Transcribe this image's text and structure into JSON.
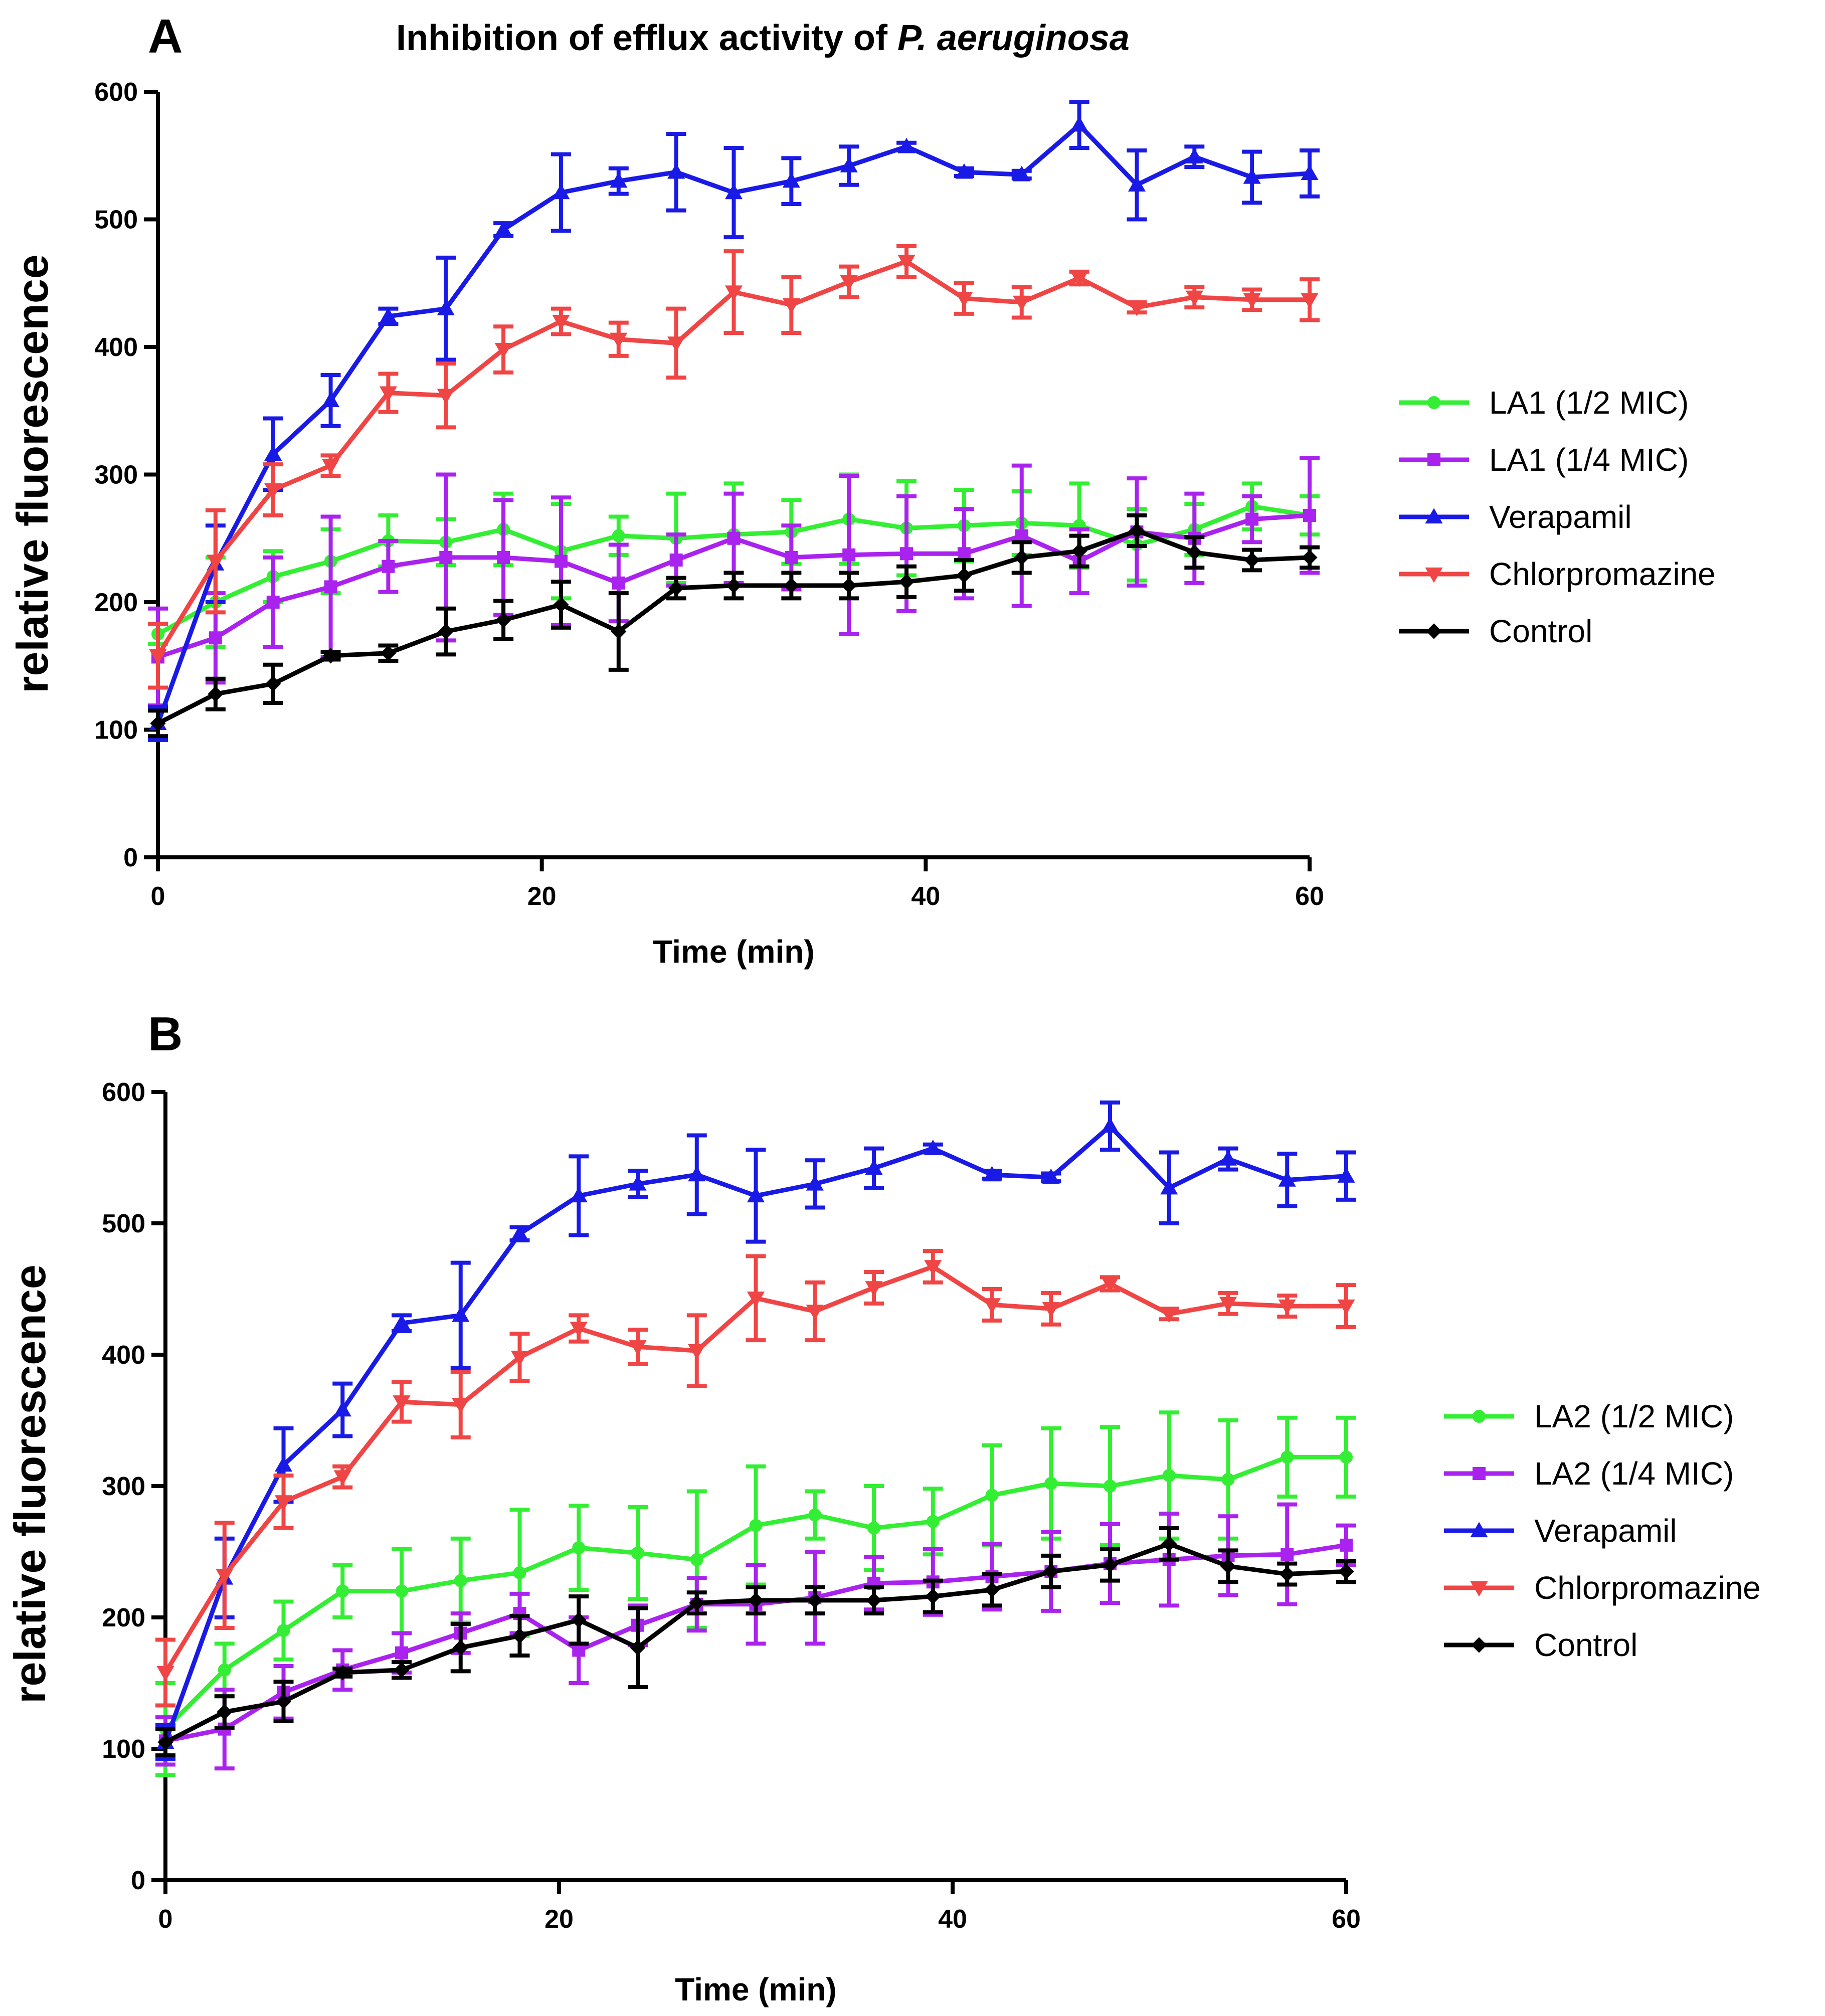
{
  "figure": {
    "title_prefix": "Inhibition of efflux activity of ",
    "title_italic": "P. aeruginosa"
  },
  "series_colors": {
    "half_mic": "#33EE33",
    "quarter_mic": "#AA22EE",
    "verapamil": "#1A1AE6",
    "chlorpromazine": "#F04545",
    "control": "#000000"
  },
  "chart_data": [
    {
      "panel": "A",
      "type": "line",
      "xlabel": "Time (min)",
      "ylabel": "relative fluorescence",
      "xlim": [
        0,
        60
      ],
      "ylim": [
        0,
        600
      ],
      "xticks": [
        0,
        20,
        40,
        60
      ],
      "yticks": [
        0,
        100,
        200,
        300,
        400,
        500,
        600
      ],
      "legend_position": "right",
      "x": [
        0,
        3,
        6,
        9,
        12,
        15,
        18,
        21,
        24,
        27,
        30,
        33,
        36,
        39,
        42,
        45,
        48,
        51,
        54,
        57,
        60
      ],
      "series": [
        {
          "name": "LA1 (1/2 MIC)",
          "color_key": "half_mic",
          "marker": "circle",
          "values": [
            175,
            200,
            220,
            232,
            248,
            247,
            257,
            240,
            252,
            250,
            253,
            255,
            265,
            258,
            260,
            262,
            260,
            245,
            257,
            275,
            268
          ],
          "errors": [
            8,
            35,
            20,
            25,
            20,
            18,
            28,
            37,
            15,
            35,
            40,
            25,
            35,
            37,
            28,
            25,
            33,
            28,
            20,
            18,
            15
          ]
        },
        {
          "name": "LA1 (1/4 MIC)",
          "color_key": "quarter_mic",
          "marker": "square",
          "values": [
            157,
            172,
            200,
            212,
            228,
            235,
            235,
            232,
            215,
            233,
            250,
            235,
            237,
            238,
            238,
            252,
            232,
            255,
            250,
            265,
            268
          ],
          "errors": [
            38,
            35,
            35,
            55,
            20,
            65,
            45,
            50,
            30,
            20,
            35,
            25,
            62,
            45,
            35,
            55,
            25,
            42,
            35,
            18,
            45
          ]
        },
        {
          "name": "Verapamil",
          "color_key": "verapamil",
          "marker": "triangle-up",
          "values": [
            105,
            230,
            316,
            358,
            424,
            430,
            492,
            521,
            530,
            537,
            521,
            530,
            542,
            557,
            537,
            535,
            574,
            527,
            549,
            533,
            536
          ],
          "errors": [
            13,
            30,
            28,
            20,
            6,
            40,
            5,
            30,
            10,
            30,
            35,
            18,
            15,
            3,
            3,
            3,
            18,
            27,
            8,
            20,
            18
          ]
        },
        {
          "name": "Chlorpromazine",
          "color_key": "chlorpromazine",
          "marker": "triangle-down",
          "values": [
            158,
            232,
            288,
            307,
            364,
            362,
            398,
            420,
            406,
            403,
            443,
            433,
            451,
            467,
            438,
            435,
            454,
            431,
            439,
            437,
            437
          ],
          "errors": [
            25,
            40,
            20,
            8,
            15,
            25,
            18,
            10,
            13,
            27,
            32,
            22,
            12,
            12,
            12,
            12,
            5,
            4,
            8,
            8,
            16
          ]
        },
        {
          "name": "Control",
          "color_key": "control",
          "marker": "diamond",
          "values": [
            105,
            128,
            136,
            158,
            160,
            177,
            186,
            198,
            177,
            211,
            213,
            213,
            213,
            216,
            221,
            235,
            240,
            256,
            239,
            233,
            235
          ],
          "errors": [
            10,
            12,
            15,
            3,
            6,
            18,
            15,
            18,
            30,
            8,
            10,
            10,
            10,
            12,
            12,
            12,
            12,
            12,
            12,
            8,
            8
          ]
        }
      ]
    },
    {
      "panel": "B",
      "type": "line",
      "xlabel": "Time (min)",
      "ylabel": "relative fluorescence",
      "xlim": [
        0,
        60
      ],
      "ylim": [
        0,
        600
      ],
      "xticks": [
        0,
        20,
        40,
        60
      ],
      "yticks": [
        0,
        100,
        200,
        300,
        400,
        500,
        600
      ],
      "legend_position": "right",
      "x": [
        0,
        3,
        6,
        9,
        12,
        15,
        18,
        21,
        24,
        27,
        30,
        33,
        36,
        39,
        42,
        45,
        48,
        51,
        54,
        57,
        60
      ],
      "series": [
        {
          "name": "LA2 (1/2 MIC)",
          "color_key": "half_mic",
          "marker": "circle",
          "values": [
            115,
            160,
            190,
            220,
            220,
            228,
            234,
            253,
            249,
            244,
            270,
            278,
            268,
            273,
            293,
            302,
            300,
            308,
            305,
            322,
            322
          ],
          "errors": [
            35,
            20,
            22,
            20,
            32,
            32,
            48,
            32,
            35,
            52,
            45,
            18,
            32,
            25,
            38,
            42,
            45,
            48,
            45,
            30,
            30
          ]
        },
        {
          "name": "LA2 (1/4 MIC)",
          "color_key": "quarter_mic",
          "marker": "square",
          "values": [
            106,
            115,
            143,
            160,
            173,
            188,
            203,
            175,
            194,
            210,
            210,
            215,
            226,
            227,
            231,
            235,
            241,
            244,
            247,
            248,
            255
          ],
          "errors": [
            18,
            30,
            20,
            15,
            15,
            15,
            15,
            25,
            15,
            20,
            30,
            35,
            20,
            25,
            25,
            30,
            30,
            35,
            30,
            38,
            15
          ]
        },
        {
          "name": "Verapamil",
          "color_key": "verapamil",
          "marker": "triangle-up",
          "values": [
            105,
            230,
            316,
            358,
            424,
            430,
            492,
            521,
            530,
            537,
            521,
            530,
            542,
            557,
            537,
            535,
            574,
            527,
            549,
            533,
            536
          ],
          "errors": [
            13,
            30,
            28,
            20,
            6,
            40,
            5,
            30,
            10,
            30,
            35,
            18,
            15,
            3,
            3,
            3,
            18,
            27,
            8,
            20,
            18
          ]
        },
        {
          "name": "Chlorpromazine",
          "color_key": "chlorpromazine",
          "marker": "triangle-down",
          "values": [
            158,
            232,
            288,
            307,
            364,
            362,
            398,
            420,
            406,
            403,
            443,
            433,
            451,
            467,
            438,
            435,
            454,
            431,
            439,
            437,
            437
          ],
          "errors": [
            25,
            40,
            20,
            8,
            15,
            25,
            18,
            10,
            13,
            27,
            32,
            22,
            12,
            12,
            12,
            12,
            5,
            4,
            8,
            8,
            16
          ]
        },
        {
          "name": "Control",
          "color_key": "control",
          "marker": "diamond",
          "values": [
            105,
            128,
            136,
            158,
            160,
            177,
            186,
            198,
            177,
            211,
            213,
            213,
            213,
            216,
            221,
            235,
            240,
            256,
            239,
            233,
            235
          ],
          "errors": [
            10,
            12,
            15,
            3,
            6,
            18,
            15,
            18,
            30,
            8,
            10,
            10,
            10,
            12,
            12,
            12,
            12,
            12,
            12,
            8,
            8
          ]
        }
      ]
    }
  ]
}
